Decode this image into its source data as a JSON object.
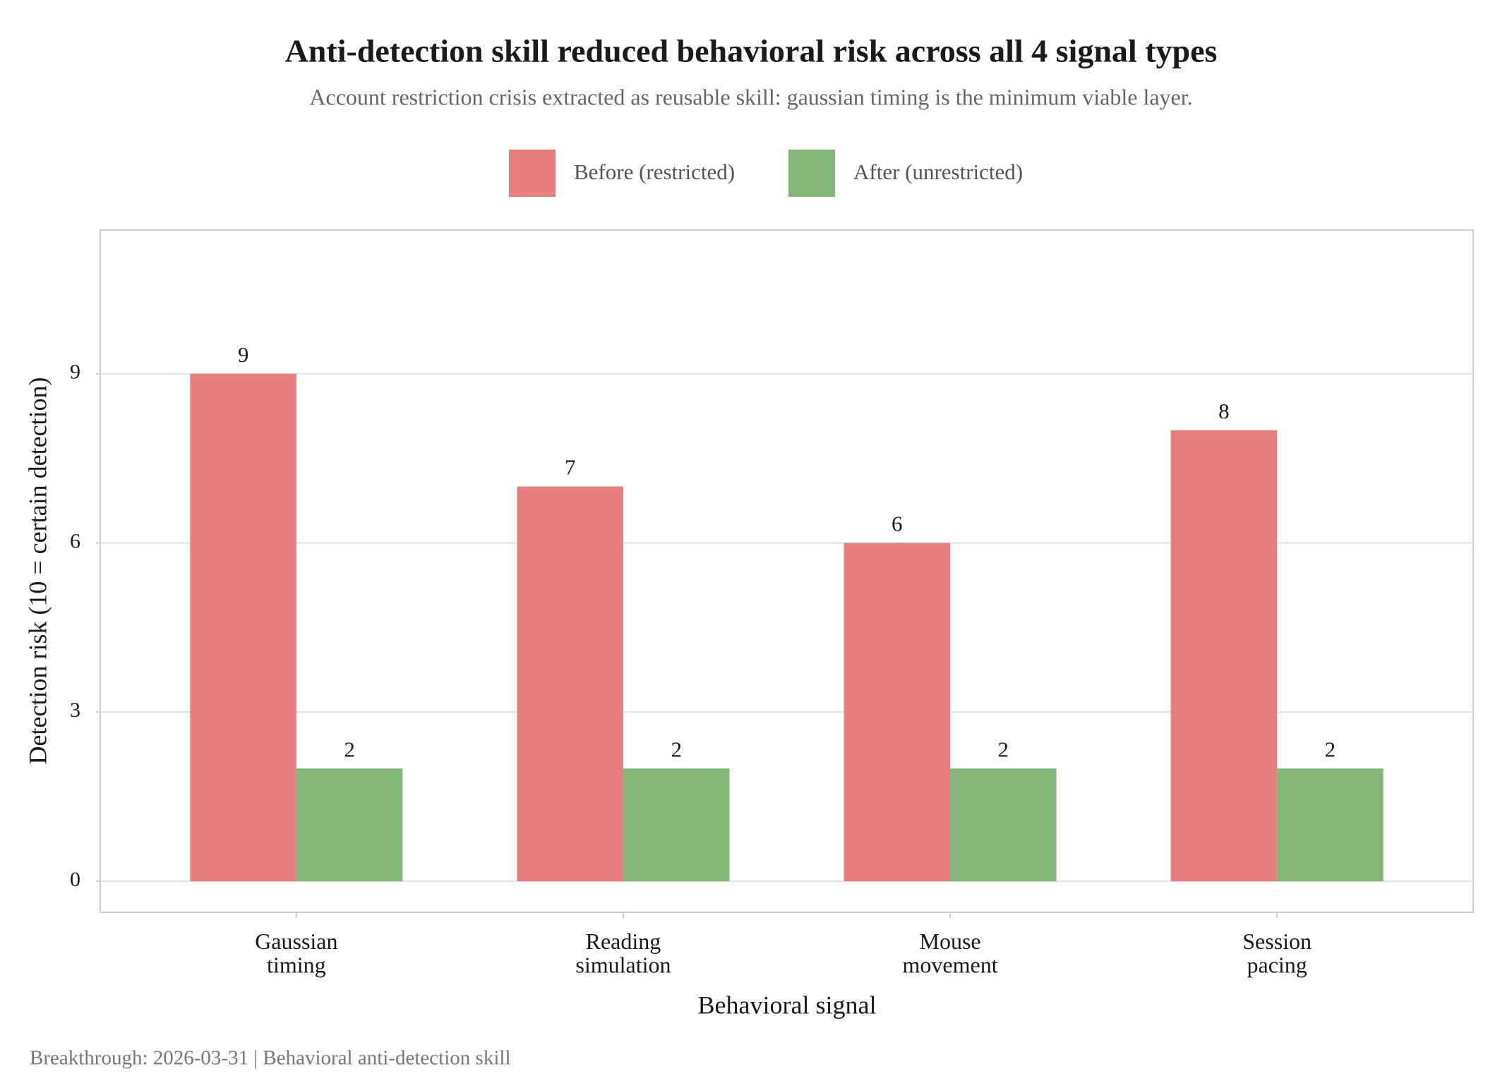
{
  "chart_data": {
    "type": "bar",
    "title": "Anti-detection skill reduced behavioral risk across all 4 signal types",
    "subtitle": "Account restriction crisis extracted as reusable skill: gaussian timing is the minimum viable layer.",
    "caption": "Breakthrough: 2026-03-31 | Behavioral anti-detection skill",
    "x_label": "Behavioral signal",
    "y_label": "Detection risk (10 = certain detection)",
    "categories": [
      "Gaussian\ntiming",
      "Reading\nsimulation",
      "Mouse\nmovement",
      "Session\npacing"
    ],
    "series": [
      {
        "name": "Before (restricted)",
        "color": "#e77f80",
        "values": [
          9,
          7,
          6,
          8
        ]
      },
      {
        "name": "After (unrestricted)",
        "color": "#83b87a",
        "values": [
          2,
          2,
          2,
          2
        ]
      }
    ],
    "ylim": [
      -0.55,
      11.55
    ],
    "yticks": [
      0,
      3,
      6,
      9
    ],
    "grid": true,
    "legend": "top"
  }
}
